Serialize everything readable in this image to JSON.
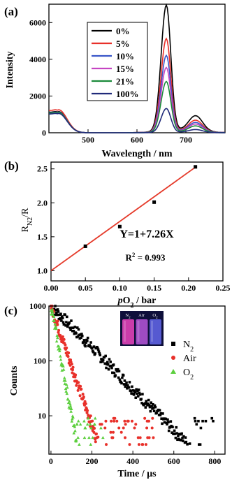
{
  "chart_data": [
    {
      "panel_label": "(a)",
      "type": "line",
      "xlabel": "Wavelength / nm",
      "ylabel": "Intensity",
      "xlim": [
        420,
        780
      ],
      "ylim": [
        0,
        7000
      ],
      "xticks": [
        500,
        600,
        700
      ],
      "yticks": [
        0,
        2000,
        4000,
        6000
      ],
      "legend_placement": "top-center",
      "series": [
        {
          "name": "0%",
          "color": "#000000",
          "peak": 6850,
          "blue": 1150
        },
        {
          "name": "5%",
          "color": "#e8302a",
          "peak": 5050,
          "blue": 1250
        },
        {
          "name": "10%",
          "color": "#3a56c9",
          "peak": 4150,
          "blue": 1120
        },
        {
          "name": "15%",
          "color": "#c545c2",
          "peak": 3500,
          "blue": 1100
        },
        {
          "name": "21%",
          "color": "#1a8a3a",
          "peak": 2750,
          "blue": 1100
        },
        {
          "name": "100%",
          "color": "#202a7a",
          "peak": 1300,
          "blue": 1050
        }
      ]
    },
    {
      "panel_label": "(b)",
      "type": "scatter",
      "xlabel_parts": {
        "italic": "p",
        "main": "O",
        "sub": "2",
        "unit": " / bar"
      },
      "ylabel_parts": {
        "main": "R",
        "sub": "N2",
        "rest": "/R"
      },
      "xlim": [
        0.0,
        0.25
      ],
      "ylim": [
        1.0,
        2.5
      ],
      "xticks": [
        "0.00",
        "0.05",
        "0.10",
        "0.15",
        "0.20",
        "0.25"
      ],
      "yticks": [
        "1.0",
        "1.5",
        "2.0",
        "2.5"
      ],
      "points": {
        "x": [
          0.05,
          0.1,
          0.15,
          0.21
        ],
        "y": [
          1.36,
          1.65,
          2.01,
          2.53
        ]
      },
      "fit": {
        "intercept": 1,
        "slope": 7.26,
        "color": "#e53a2a",
        "equation": "Y=1+7.26X",
        "r2_label": "R",
        "r2_sup": "2",
        "r2_value": " = 0.993"
      }
    },
    {
      "panel_label": "(c)",
      "type": "scatter",
      "xlabel": "Time / µs",
      "ylabel": "Counts",
      "xscale": "linear",
      "yscale": "log",
      "xlim": [
        -10,
        850
      ],
      "ylim": [
        2,
        1000
      ],
      "xticks": [
        0,
        200,
        400,
        600,
        800
      ],
      "yticks": [
        "1000",
        "100",
        "10"
      ],
      "legend_placement": "right",
      "series": [
        {
          "name": "N",
          "sub": "2",
          "marker": "square",
          "color": "#000000",
          "tau": 115,
          "xmax": 800
        },
        {
          "name": "Air",
          "sub": "",
          "marker": "circle",
          "color": "#e8302a",
          "tau": 40,
          "xmax": 500
        },
        {
          "name": "O",
          "sub": "2",
          "marker": "triangle",
          "color": "#5ccf3e",
          "tau": 22,
          "xmax": 260
        }
      ],
      "inset": {
        "labels": [
          {
            "main": "N",
            "sub": "2"
          },
          {
            "main": "Air",
            "sub": ""
          },
          {
            "main": "O",
            "sub": "2"
          }
        ],
        "vial_colors": [
          "#d53fb0",
          "#a64fc9",
          "#5b5fd9"
        ]
      }
    }
  ]
}
